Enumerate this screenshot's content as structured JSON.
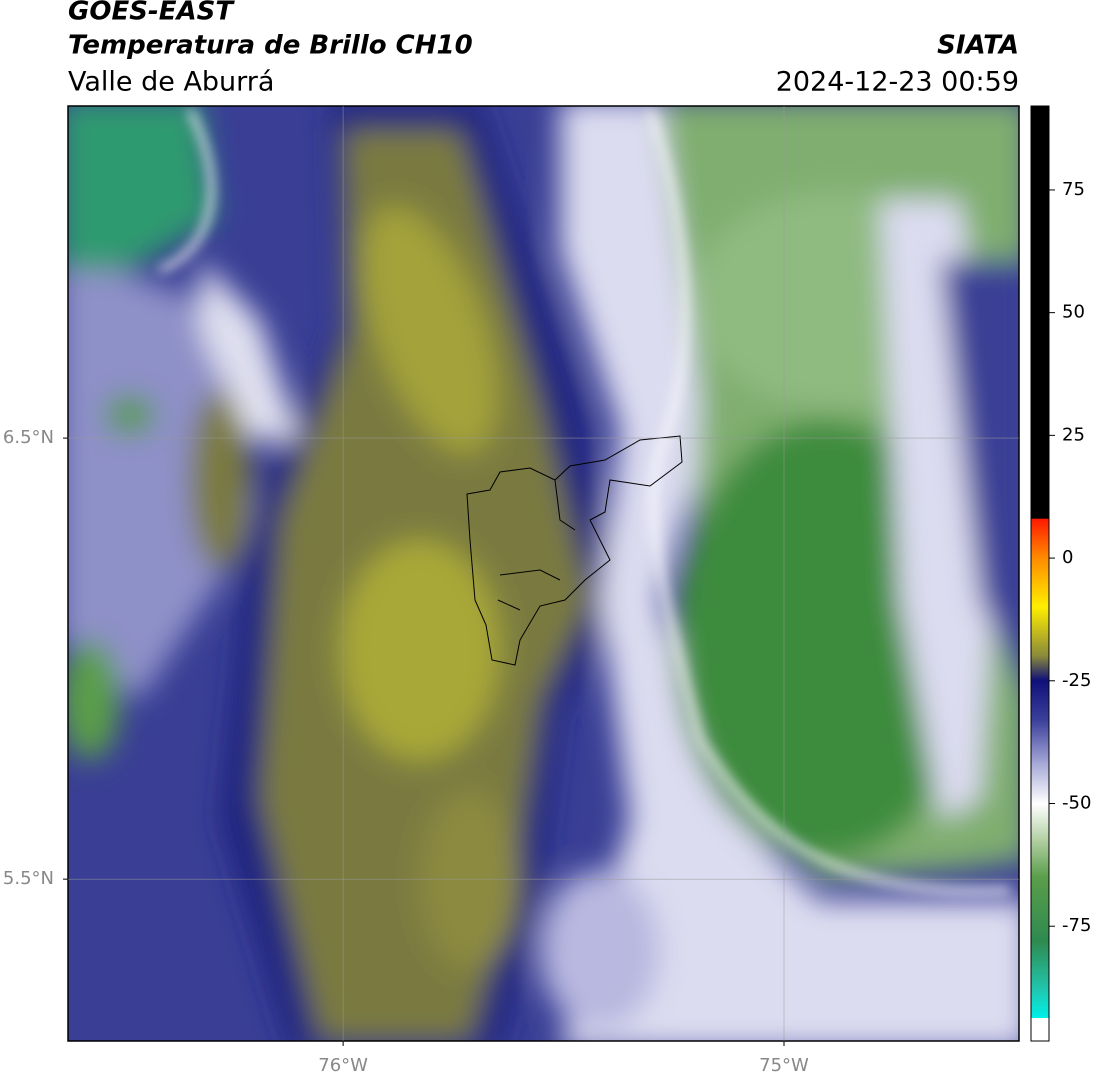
{
  "header": {
    "satellite": "GOES-EAST",
    "product": "Temperatura de Brillo CH10",
    "region": "Valle de Aburrá",
    "source": "SIATA",
    "timestamp": "2024-12-23 00:59"
  },
  "map": {
    "xlim": [
      -76.624,
      -74.467
    ],
    "ylim": [
      5.133,
      7.253
    ],
    "xticks": [
      {
        "value": -76,
        "label": "76°W"
      },
      {
        "value": -75,
        "label": "75°W"
      }
    ],
    "yticks": [
      {
        "value": 5.5,
        "label": "5.5°N"
      },
      {
        "value": 6.5,
        "label": "6.5°N"
      }
    ],
    "grid": true
  },
  "colorbar": {
    "lim": [
      -93.7,
      92.1
    ],
    "ticks": [
      -75,
      -50,
      -25,
      0,
      25,
      50,
      75
    ]
  }
}
